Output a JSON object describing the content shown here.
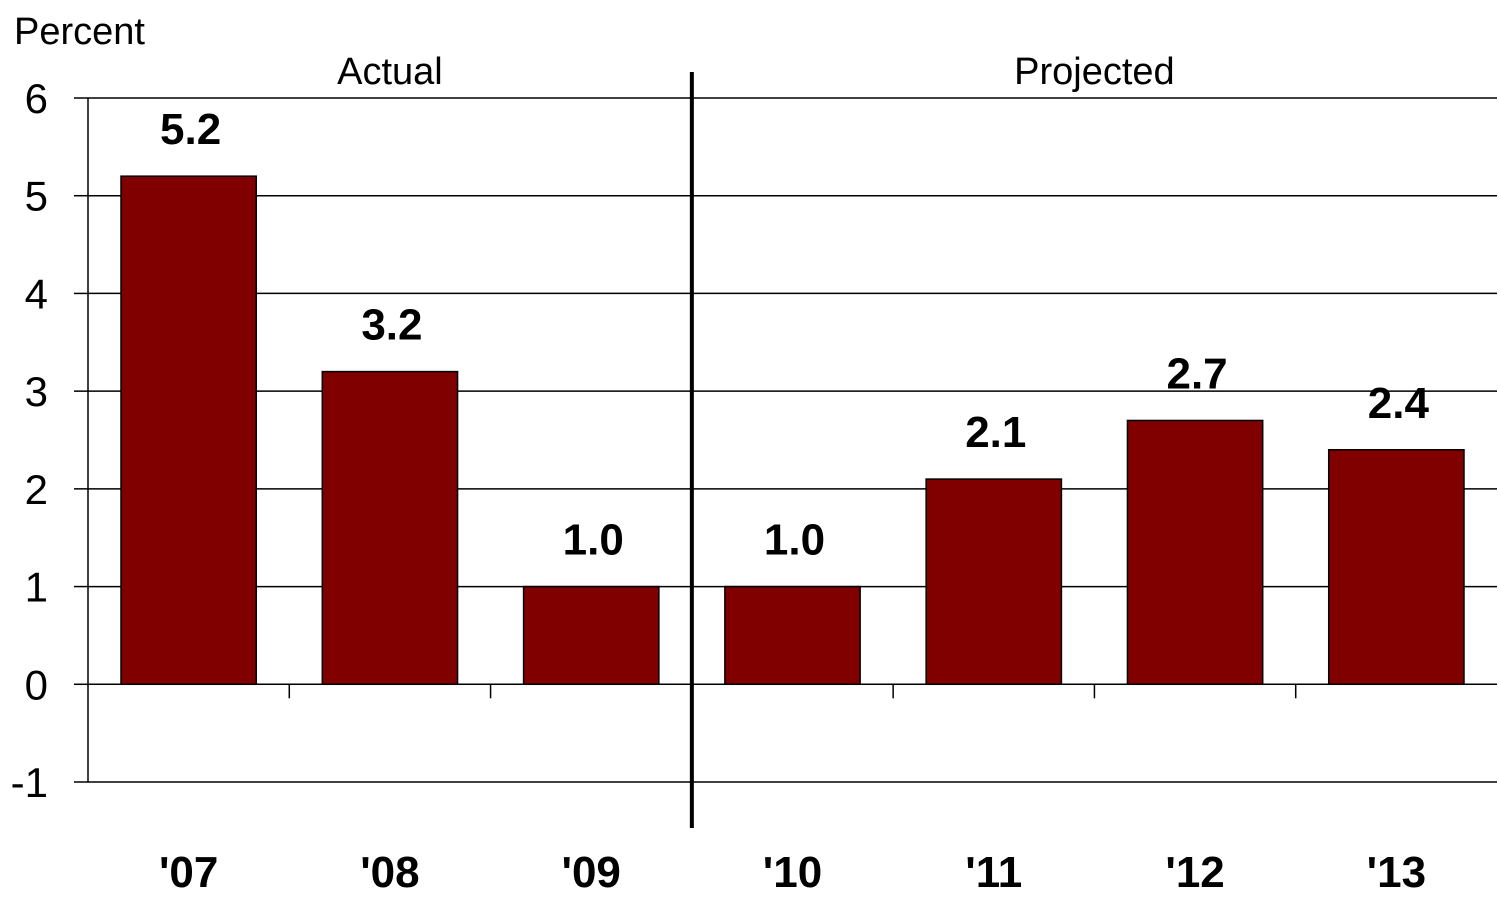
{
  "chart_data": {
    "type": "bar",
    "categories": [
      "'07",
      "'08",
      "'09",
      "'10",
      "'11",
      "'12",
      "'13"
    ],
    "values": [
      5.2,
      3.2,
      1.0,
      1.0,
      2.1,
      2.7,
      2.4
    ],
    "value_labels": [
      "5.2",
      "3.2",
      "1.0",
      "1.0",
      "2.1",
      "2.7",
      "2.4"
    ],
    "title": "",
    "xlabel": "",
    "ylabel": "Percent",
    "ylim": [
      -1,
      6
    ],
    "yticks": [
      6,
      5,
      4,
      3,
      2,
      1,
      0,
      -1
    ],
    "ytick_labels": [
      "6",
      "5",
      "4",
      "3",
      "2",
      "1",
      "0",
      "-1"
    ],
    "grid": true,
    "bar_color": "#800000",
    "sections": [
      {
        "label": "Actual",
        "categories": [
          "'07",
          "'08",
          "'09"
        ]
      },
      {
        "label": "Projected",
        "categories": [
          "'10",
          "'11",
          "'12",
          "'13"
        ]
      }
    ]
  }
}
